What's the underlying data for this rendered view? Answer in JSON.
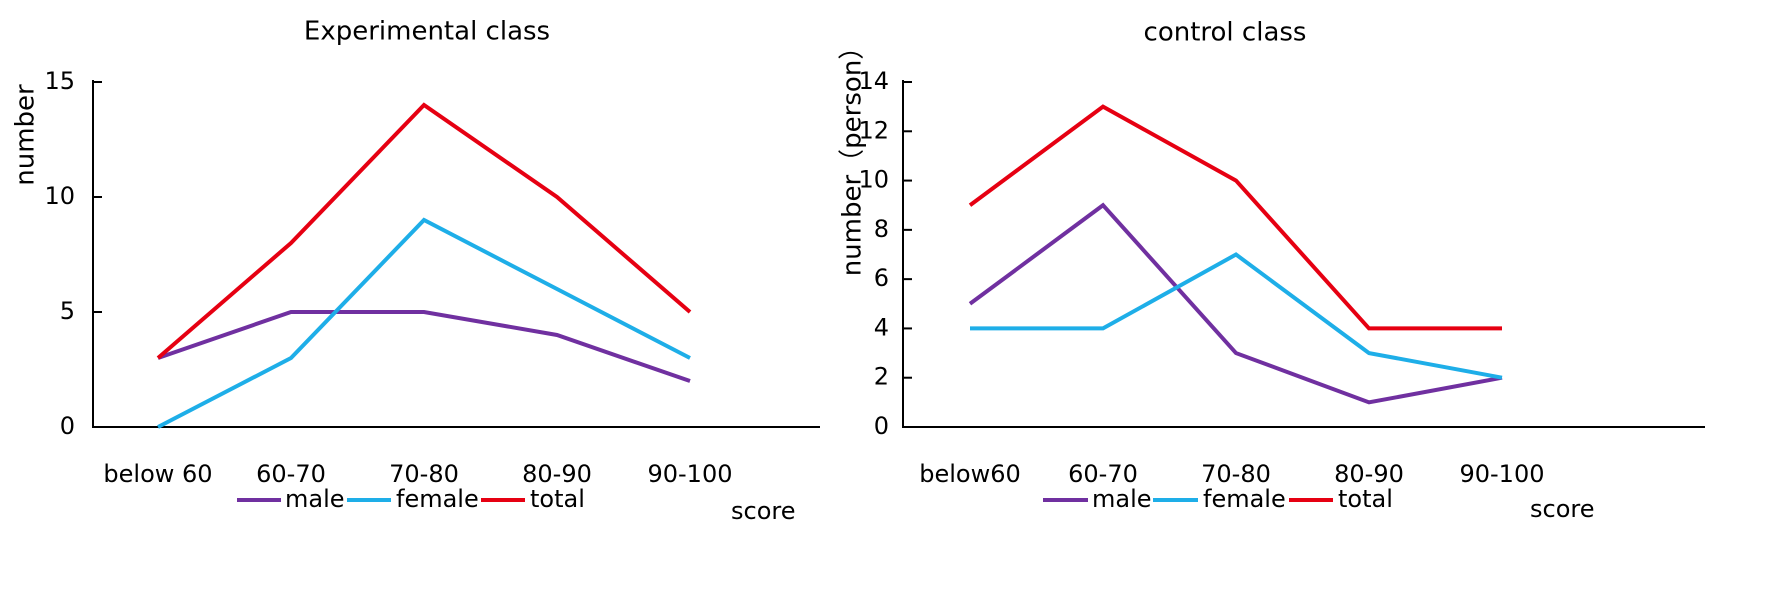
{
  "chart_data": [
    {
      "type": "line",
      "title": "Experimental class",
      "xlabel": "score",
      "ylabel": "number",
      "categories": [
        "below 60",
        "60-70",
        "70-80",
        "80-90",
        "90-100"
      ],
      "ylim": [
        0,
        15
      ],
      "yticks": [
        0,
        5,
        10,
        15
      ],
      "grid": false,
      "legend_position": "bottom",
      "series": [
        {
          "name": "male",
          "color": "#7030A0",
          "values": [
            3,
            5,
            5,
            4,
            2
          ]
        },
        {
          "name": "female",
          "color": "#1EAEE8",
          "values": [
            0,
            3,
            9,
            6,
            3
          ]
        },
        {
          "name": "total",
          "color": "#E60012",
          "values": [
            3,
            8,
            14,
            10,
            5
          ]
        }
      ]
    },
    {
      "type": "line",
      "title": "control class",
      "xlabel": "score",
      "ylabel": "number（person）",
      "categories": [
        "below60",
        "60-70",
        "70-80",
        "80-90",
        "90-100"
      ],
      "ylim": [
        0,
        14
      ],
      "yticks": [
        0,
        2,
        4,
        6,
        8,
        10,
        12,
        14
      ],
      "grid": false,
      "legend_position": "bottom",
      "series": [
        {
          "name": "male",
          "color": "#7030A0",
          "values": [
            5,
            9,
            3,
            1,
            2
          ]
        },
        {
          "name": "female",
          "color": "#1EAEE8",
          "values": [
            4,
            4,
            7,
            3,
            2
          ]
        },
        {
          "name": "total",
          "color": "#E60012",
          "values": [
            9,
            13,
            10,
            4,
            4
          ]
        }
      ]
    }
  ]
}
